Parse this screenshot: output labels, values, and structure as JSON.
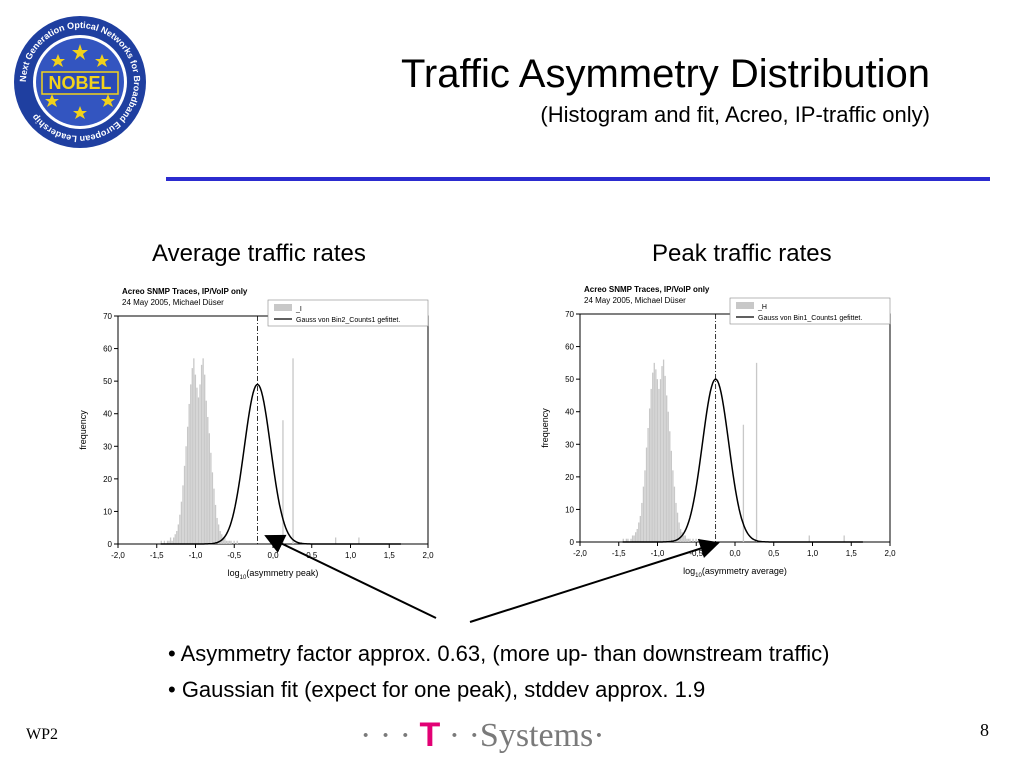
{
  "slide": {
    "title": "Traffic Asymmetry Distribution",
    "subtitle": "(Histogram and fit, Acreo, IP-traffic only)",
    "left_panel_title": "Average traffic rates",
    "right_panel_title": "Peak traffic rates",
    "bullets": [
      "• Asymmetry factor approx. 0.63, (more up- than downstream traffic)",
      "• Gaussian fit (expect for one peak), stddev approx. 1.9"
    ],
    "footer_left": "WP2",
    "page_number": "8",
    "brand": {
      "dots_left": "· · ·",
      "t": "T",
      "dots_mid": "· ·",
      "name": "Systems",
      "dot_right": "·",
      "t_color": "#e20074"
    },
    "logo_text": "NOBEL",
    "logo_ring_text": "Next Generation Optical Networks for Broadband European Leadership",
    "accent_color": "#2b2bcf",
    "arrow_color": "#000000"
  },
  "chart_data": [
    {
      "type": "bar",
      "overlay": "line",
      "header_line1": "Acreo SNMP Traces, IP/VoIP only",
      "header_line2": "24 May 2005, Michael Düser",
      "legend": [
        "_I",
        "Gauss von Bin2_Counts1 gefittet."
      ],
      "legend_position": "top-right",
      "xlabel_main": "log",
      "xlabel_sub": "10",
      "xlabel_rest": "(asymmetry peak)",
      "ylabel": "frequency",
      "xlim": [
        -2.0,
        2.0
      ],
      "ylim": [
        0,
        70
      ],
      "xticks": [
        "-2,0",
        "-1,5",
        "-1,0",
        "-0,5",
        "0,0",
        "0,5",
        "1,0",
        "1,5",
        "2,0"
      ],
      "yticks": [
        "0",
        "10",
        "20",
        "30",
        "40",
        "50",
        "60",
        "70"
      ],
      "bar_color": "#c8c8c8",
      "bins": {
        "start": -1.45,
        "step": 0.02,
        "values": [
          1,
          0,
          1,
          0,
          1,
          1,
          2,
          1,
          2,
          3,
          4,
          6,
          9,
          13,
          18,
          24,
          30,
          36,
          43,
          49,
          54,
          57,
          52,
          48,
          45,
          49,
          55,
          57,
          52,
          44,
          39,
          34,
          28,
          22,
          17,
          12,
          8,
          6,
          4,
          3,
          2,
          2,
          1,
          1,
          1,
          1,
          0,
          1,
          0,
          1
        ]
      },
      "extra_bars": [
        [
          0.25,
          57
        ],
        [
          0.12,
          38
        ],
        [
          0.8,
          2
        ],
        [
          1.1,
          2
        ]
      ],
      "gauss": {
        "center": -0.2,
        "amplitude": 49,
        "sigma": 0.17
      },
      "vline_x": -0.2
    },
    {
      "type": "bar",
      "overlay": "line",
      "header_line1": "Acreo SNMP Traces, IP/VoIP only",
      "header_line2": "24 May 2005, Michael Düser",
      "legend": [
        "_H",
        "Gauss von Bin1_Counts1 gefittet."
      ],
      "legend_position": "top-right",
      "xlabel_main": "log",
      "xlabel_sub": "10",
      "xlabel_rest": "(asymmetry average)",
      "ylabel": "frequency",
      "xlim": [
        -2.0,
        2.0
      ],
      "ylim": [
        0,
        70
      ],
      "xticks": [
        "-2,0",
        "-1,5",
        "-1,0",
        "-0,5",
        "0,0",
        "0,5",
        "1,0",
        "1,5",
        "2,0"
      ],
      "yticks": [
        "0",
        "10",
        "20",
        "30",
        "40",
        "50",
        "60",
        "70"
      ],
      "bar_color": "#c8c8c8",
      "bins": {
        "start": -1.45,
        "step": 0.02,
        "values": [
          1,
          0,
          1,
          1,
          0,
          1,
          2,
          2,
          3,
          4,
          6,
          8,
          12,
          17,
          22,
          29,
          35,
          41,
          47,
          52,
          55,
          53,
          50,
          47,
          50,
          54,
          56,
          51,
          45,
          40,
          34,
          28,
          22,
          17,
          12,
          9,
          6,
          4,
          3,
          2,
          2,
          1,
          1,
          1,
          0,
          1,
          0,
          1,
          0,
          1
        ]
      },
      "extra_bars": [
        [
          0.27,
          55
        ],
        [
          0.1,
          36
        ],
        [
          0.95,
          2
        ],
        [
          1.4,
          2
        ]
      ],
      "gauss": {
        "center": -0.25,
        "amplitude": 50,
        "sigma": 0.17
      },
      "vline_x": -0.25
    }
  ]
}
